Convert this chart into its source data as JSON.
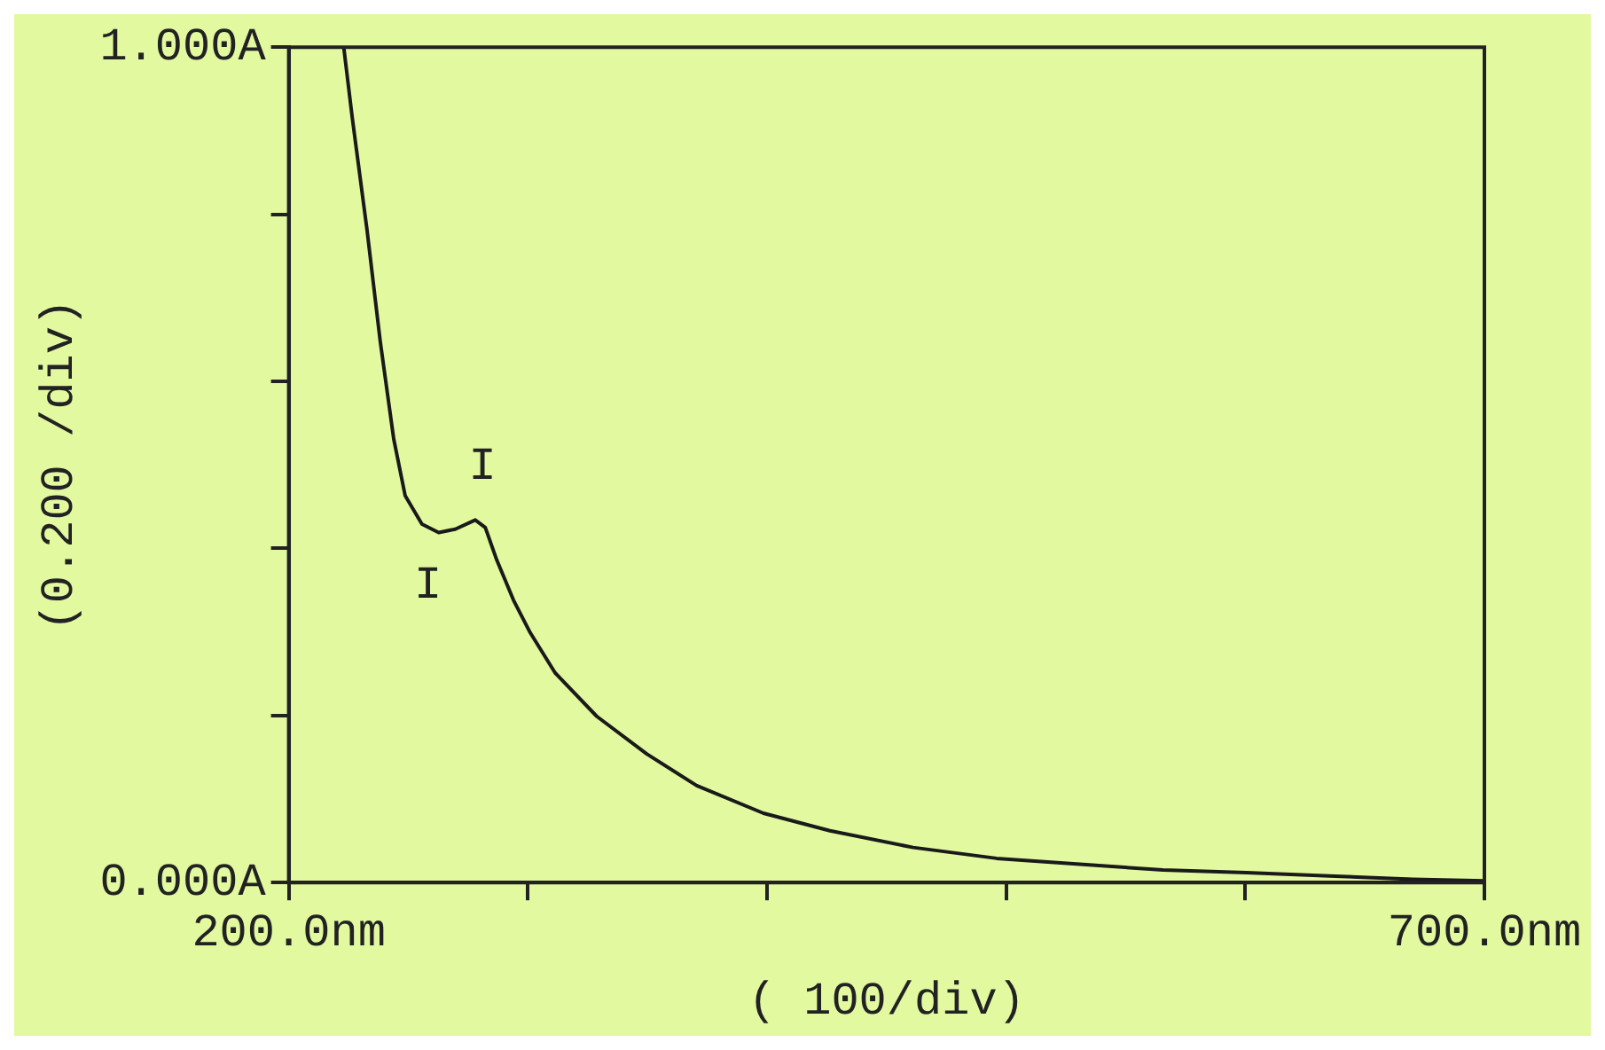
{
  "chart_data": {
    "type": "line",
    "xlabel": "( 100/div)",
    "ylabel": "(0.200 /div)",
    "x": [
      223,
      226.5,
      232.7,
      238.3,
      243.9,
      248.7,
      255.7,
      262.7,
      269.6,
      278,
      282.2,
      287,
      294,
      301,
      311.4,
      328.8,
      349.7,
      370.6,
      398.5,
      426.3,
      461.1,
      496,
      530.8,
      565.6,
      600.4,
      635.2,
      670,
      700
    ],
    "series": [
      {
        "color": "#1a1a1a",
        "values": [
          1.0,
          0.917,
          0.782,
          0.647,
          0.531,
          0.463,
          0.429,
          0.419,
          0.423,
          0.434,
          0.425,
          0.386,
          0.338,
          0.299,
          0.251,
          0.199,
          0.154,
          0.116,
          0.083,
          0.062,
          0.042,
          0.029,
          0.022,
          0.015,
          0.012,
          0.008,
          0.004,
          0.002
        ]
      }
    ],
    "xlim": [
      200,
      700
    ],
    "xticks": [
      {
        "value": 200,
        "label": "200.0nm"
      },
      {
        "value": 300,
        "label": null
      },
      {
        "value": 400,
        "label": null
      },
      {
        "value": 500,
        "label": null
      },
      {
        "value": 600,
        "label": null
      },
      {
        "value": 700,
        "label": "700.0nm"
      }
    ],
    "ylim": [
      0,
      1
    ],
    "yticks": [
      {
        "value": 0,
        "label": "0.000A"
      },
      {
        "value": 0.2,
        "label": null
      },
      {
        "value": 0.4,
        "label": null
      },
      {
        "value": 0.6,
        "label": null
      },
      {
        "value": 0.8,
        "label": null
      },
      {
        "value": 1,
        "label": "1.000A"
      }
    ],
    "annotations": [
      {
        "text": "I",
        "x": 278,
        "y": 0.434
      },
      {
        "text": "I",
        "x": 262.7,
        "y": 0.419
      }
    ],
    "grid": false,
    "legend": false,
    "marker": "none",
    "line_style": "solid"
  }
}
